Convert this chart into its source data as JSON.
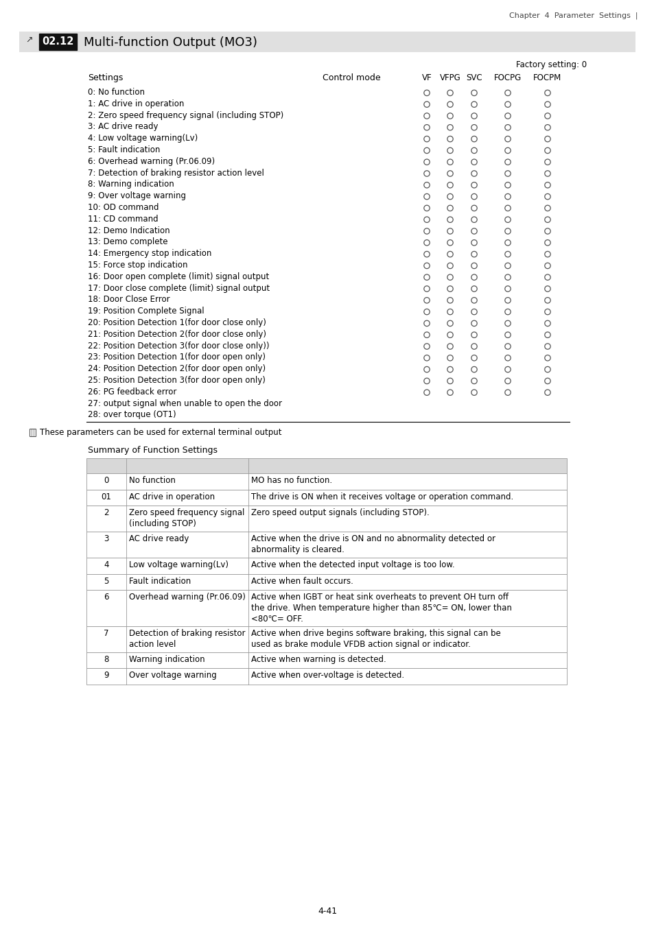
{
  "chapter_header": "Chapter  4  Parameter  Settings  |",
  "param_code": "02.12",
  "param_title": "Multi-function Output (MO3)",
  "factory_setting": "Factory setting: 0",
  "settings_rows": [
    "0: No function",
    "1: AC drive in operation",
    "2: Zero speed frequency signal (including STOP)",
    "3: AC drive ready",
    "4: Low voltage warning(Lv)",
    "5: Fault indication",
    "6: Overhead warning (Pr.06.09)",
    "7: Detection of braking resistor action level",
    "8: Warning indication",
    "9: Over voltage warning",
    "10: OD command",
    "11: CD command",
    "12: Demo Indication",
    "13: Demo complete",
    "14: Emergency stop indication",
    "15: Force stop indication",
    "16: Door open complete (limit) signal output",
    "17: Door close complete (limit) signal output",
    "18: Door Close Error",
    "19: Position Complete Signal",
    "20: Position Detection 1(for door close only)",
    "21: Position Detection 2(for door close only)",
    "22: Position Detection 3(for door close only))",
    "23: Position Detection 1(for door open only)",
    "24: Position Detection 2(for door open only)",
    "25: Position Detection 3(for door open only)",
    "26: PG feedback error",
    "27: output signal when unable to open the door",
    "28: over torque (OT1)"
  ],
  "has_circles_count": 27,
  "note_text": "These parameters can be used for external terminal output",
  "summary_title": "Summary of Function Settings",
  "summary_rows": [
    [
      "0",
      "No function",
      "MO has no function."
    ],
    [
      "01",
      "AC drive in operation",
      "The drive is ON when it receives voltage or operation command."
    ],
    [
      "2",
      "Zero speed frequency signal\n(including STOP)",
      "Zero speed output signals (including STOP)."
    ],
    [
      "3",
      "AC drive ready",
      "Active when the drive is ON and no abnormality detected or\nabnormality is cleared."
    ],
    [
      "4",
      "Low voltage warning(Lv)",
      "Active when the detected input voltage is too low."
    ],
    [
      "5",
      "Fault indication",
      "Active when fault occurs."
    ],
    [
      "6",
      "Overhead warning (Pr.06.09)",
      "Active when IGBT or heat sink overheats to prevent OH turn off\nthe drive. When temperature higher than 85℃= ON, lower than\n<80℃= OFF."
    ],
    [
      "7",
      "Detection of braking resistor\naction level",
      "Active when drive begins software braking, this signal can be\nused as brake module VFDB action signal or indicator."
    ],
    [
      "8",
      "Warning indication",
      "Active when warning is detected."
    ],
    [
      "9",
      "Over voltage warning",
      "Active when over-voltage is detected."
    ]
  ],
  "page_number": "4-41",
  "header_bg": "#e0e0e0",
  "table_header_bg": "#d8d8d8",
  "circle_color": "#555555",
  "grid_color": "#999999"
}
